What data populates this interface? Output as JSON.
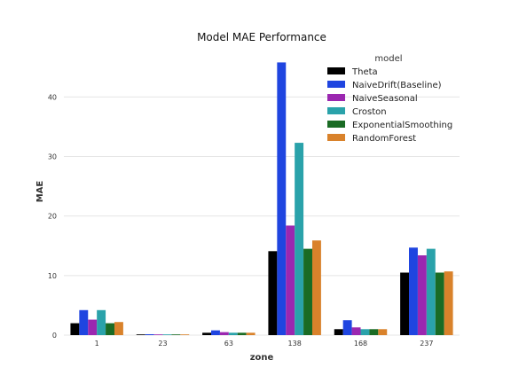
{
  "chart_data": {
    "type": "bar",
    "title": "Model MAE Performance",
    "xlabel": "zone",
    "ylabel": "MAE",
    "categories": [
      "1",
      "23",
      "63",
      "138",
      "168",
      "237"
    ],
    "ylim": [
      0,
      47.5
    ],
    "yticks": [
      0,
      10,
      20,
      30,
      40
    ],
    "grid": true,
    "legend": {
      "title": "model",
      "placement": "top-right"
    },
    "series": [
      {
        "name": "Theta",
        "color": "#000000",
        "values": [
          2.0,
          0.12,
          0.4,
          14.1,
          1.0,
          10.5
        ]
      },
      {
        "name": "NaiveDrift(Baseline)",
        "color": "#1f45e0",
        "values": [
          4.2,
          0.15,
          0.8,
          45.8,
          2.5,
          14.7
        ]
      },
      {
        "name": "NaiveSeasonal",
        "color": "#9b27b0",
        "values": [
          2.6,
          0.12,
          0.5,
          18.4,
          1.3,
          13.4
        ]
      },
      {
        "name": "Croston",
        "color": "#2aa2aa",
        "values": [
          4.2,
          0.12,
          0.4,
          32.3,
          1.0,
          14.5
        ]
      },
      {
        "name": "ExponentialSmoothing",
        "color": "#1a6b24",
        "values": [
          2.0,
          0.12,
          0.4,
          14.5,
          1.0,
          10.5
        ]
      },
      {
        "name": "RandomForest",
        "color": "#d9822b",
        "values": [
          2.2,
          0.12,
          0.4,
          15.9,
          1.0,
          10.7
        ]
      }
    ]
  }
}
